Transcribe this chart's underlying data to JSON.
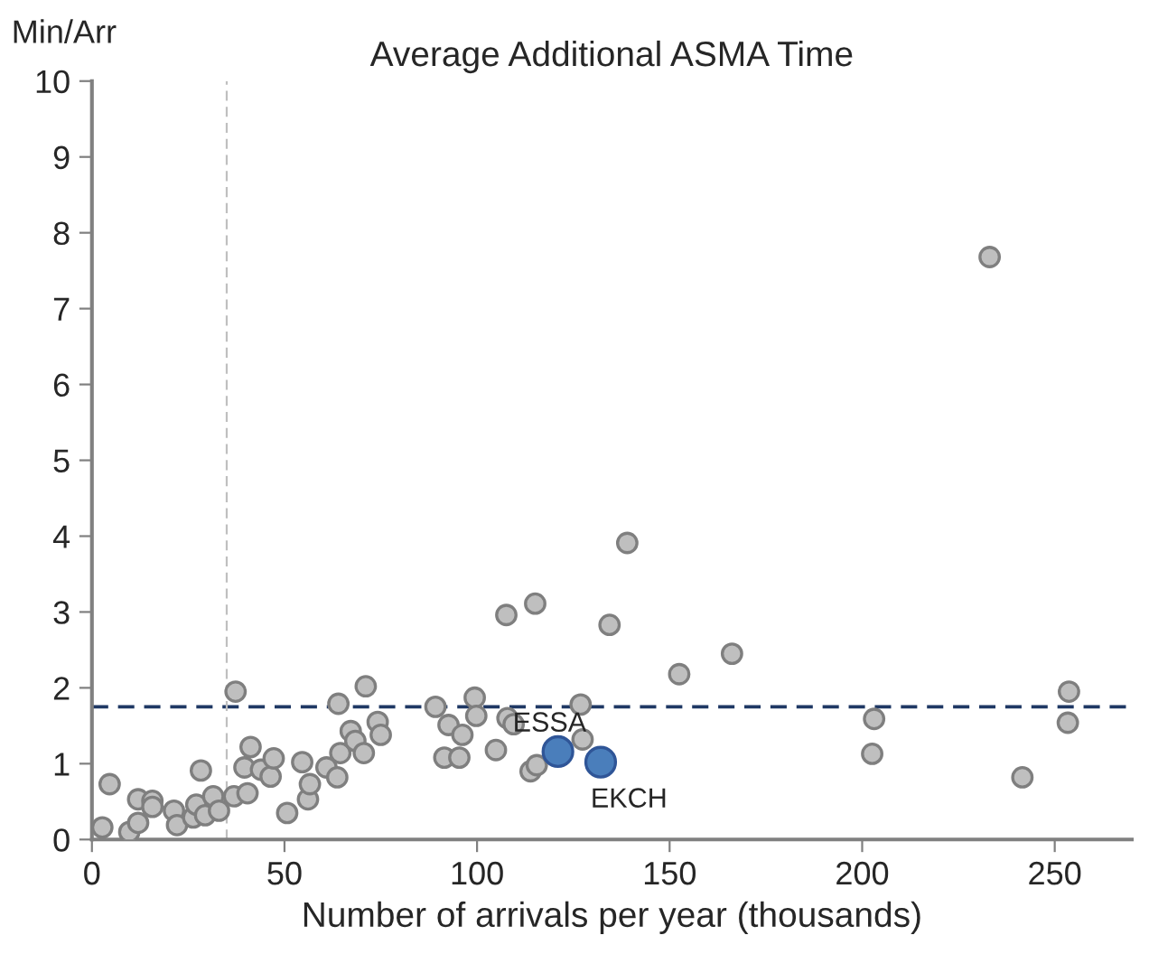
{
  "chart_data": {
    "type": "scatter",
    "title": "Average Additional ASMA Time",
    "ylabel": "Min/Arr",
    "xlabel": "Number of arrivals per year (thousands)",
    "xlim": [
      0,
      270
    ],
    "xticks": [
      0,
      50,
      100,
      150,
      200,
      250
    ],
    "ylim": [
      0,
      10
    ],
    "yticks": [
      0,
      1,
      2,
      3,
      4,
      5,
      6,
      7,
      8,
      9,
      10
    ],
    "grid": false,
    "legend": false,
    "marker": "circle",
    "series": [
      {
        "color": "#bfbfbf",
        "x": [
          2.7,
          4.6,
          9.7,
          12.0,
          12.0,
          15.7,
          15.7,
          21.3,
          22.1,
          26.3,
          27.1,
          28.3,
          29.4,
          31.5,
          33.0,
          36.9,
          37.3,
          40.4,
          39.6,
          41.2,
          43.9,
          46.4,
          47.2,
          50.7,
          54.6,
          56.1,
          56.6,
          60.9,
          64.0,
          63.7,
          64.5,
          67.2,
          68.4,
          70.6,
          71.1,
          74.2,
          75.0,
          89.2,
          92.6,
          96.2,
          91.5,
          95.4,
          99.4,
          99.8,
          104.9,
          107.9,
          109.5,
          113.9,
          115.5,
          107.6,
          115.1,
          139.0,
          134.4,
          166.2,
          152.5,
          126.9,
          127.4,
          203.1,
          202.6,
          253.7,
          253.4,
          241.6,
          233.1
        ],
        "values": [
          0.16,
          0.73,
          0.1,
          0.22,
          0.53,
          0.51,
          0.43,
          0.38,
          0.19,
          0.29,
          0.46,
          0.91,
          0.32,
          0.57,
          0.38,
          0.57,
          1.95,
          0.61,
          0.95,
          1.22,
          0.92,
          0.83,
          1.07,
          0.35,
          1.02,
          0.53,
          0.73,
          0.95,
          1.79,
          0.82,
          1.14,
          1.43,
          1.3,
          1.14,
          2.02,
          1.55,
          1.38,
          1.75,
          1.51,
          1.38,
          1.08,
          1.08,
          1.87,
          1.63,
          1.18,
          1.6,
          1.52,
          0.9,
          0.98,
          2.96,
          3.11,
          3.91,
          2.83,
          2.45,
          2.18,
          1.78,
          1.32,
          1.59,
          1.13,
          1.95,
          1.54,
          0.82,
          7.68
        ]
      },
      {
        "color": "#4a7ebb",
        "x": [
          121.0,
          132.1
        ],
        "values": [
          1.16,
          1.02
        ]
      }
    ],
    "ref_lines": [
      {
        "axis": "y",
        "value": 1.75,
        "color": "#1f3864",
        "line_style": "dashed"
      },
      {
        "axis": "x",
        "value": 35,
        "color": "#bfbfbf",
        "line_style": "dashed"
      }
    ],
    "annotations": [
      {
        "text": "ESSA",
        "x": 121.0,
        "y": 1.16
      },
      {
        "text": "EKCH",
        "x": 132.1,
        "y": 1.02
      }
    ]
  }
}
